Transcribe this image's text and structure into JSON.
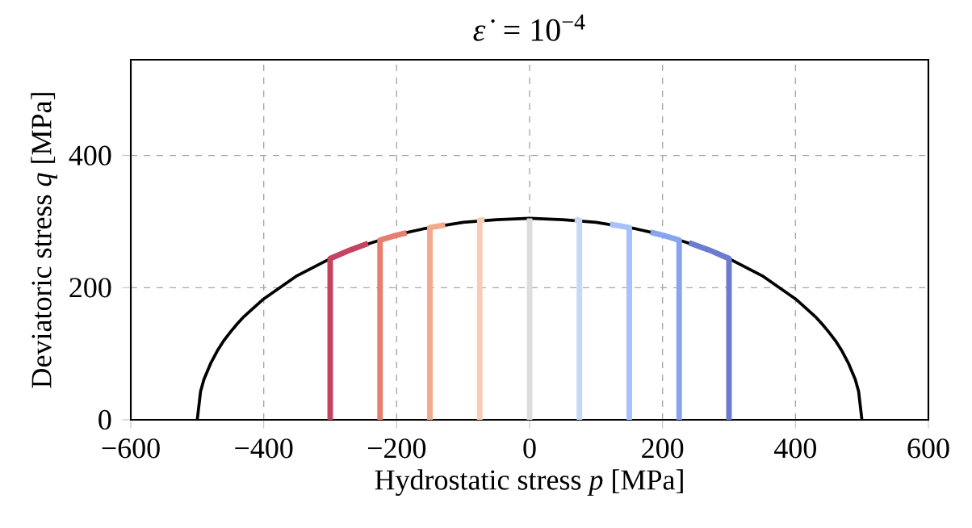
{
  "chart_data": {
    "type": "line",
    "title": "*ε̇* = 10$^{−4}$",
    "xlabel": "Hydrostatic stress *p* [MPa]",
    "ylabel": "Deviatoric stress *q* [MPa]",
    "xlim": [
      -600,
      600
    ],
    "ylim": [
      0,
      545
    ],
    "xticks": [
      {
        "value": -600,
        "label": "−600"
      },
      {
        "value": -400,
        "label": "−400"
      },
      {
        "value": -200,
        "label": "−200"
      },
      0,
      200,
      400,
      600
    ],
    "yticks": [
      0,
      200,
      400
    ],
    "grid": true,
    "marker": "none",
    "line_style": "solid",
    "series": [
      {
        "color": "#000000",
        "x": [
          -500,
          -495,
          -490,
          -480,
          -470,
          -460,
          -450,
          -440,
          -430,
          -420,
          -400,
          -350,
          -300,
          -250,
          -200,
          -160,
          -100,
          -50,
          0,
          50,
          100,
          160,
          200,
          250,
          300,
          350,
          400,
          420,
          430,
          440,
          450,
          460,
          470,
          480,
          490,
          495,
          500
        ],
        "values": [
          0,
          43,
          61,
          85,
          104,
          120,
          133,
          145,
          156,
          165,
          183,
          218,
          244,
          264,
          280,
          289,
          299,
          303,
          305,
          303,
          299,
          289,
          280,
          264,
          244,
          218,
          183,
          165,
          156,
          145,
          133,
          120,
          104,
          85,
          61,
          43,
          0
        ]
      },
      {
        "color": "#c44360",
        "x": [
          -300,
          -300,
          -270,
          -243
        ],
        "values": [
          0,
          244,
          257,
          267
        ]
      },
      {
        "color": "#e57f70",
        "x": [
          -225,
          -225,
          -205,
          -185
        ],
        "values": [
          0,
          272,
          278,
          283
        ]
      },
      {
        "color": "#f4a98f",
        "x": [
          -150,
          -150,
          -127
        ],
        "values": [
          0,
          291,
          295
        ]
      },
      {
        "color": "#f5ccb8",
        "x": [
          -75,
          -75,
          -68
        ],
        "values": [
          0,
          302,
          303
        ]
      },
      {
        "color": "#dddddd",
        "x": [
          0,
          0
        ],
        "values": [
          0,
          305
        ]
      },
      {
        "color": "#c5d8f5",
        "x": [
          75,
          75,
          68
        ],
        "values": [
          0,
          302,
          303
        ]
      },
      {
        "color": "#a6c1fc",
        "x": [
          150,
          150,
          121
        ],
        "values": [
          0,
          291,
          296
        ]
      },
      {
        "color": "#8aa3ef",
        "x": [
          225,
          225,
          205,
          182
        ],
        "values": [
          0,
          272,
          278,
          284
        ]
      },
      {
        "color": "#6b7cd0",
        "x": [
          300,
          300,
          270,
          240
        ],
        "values": [
          0,
          244,
          257,
          268
        ]
      }
    ]
  }
}
